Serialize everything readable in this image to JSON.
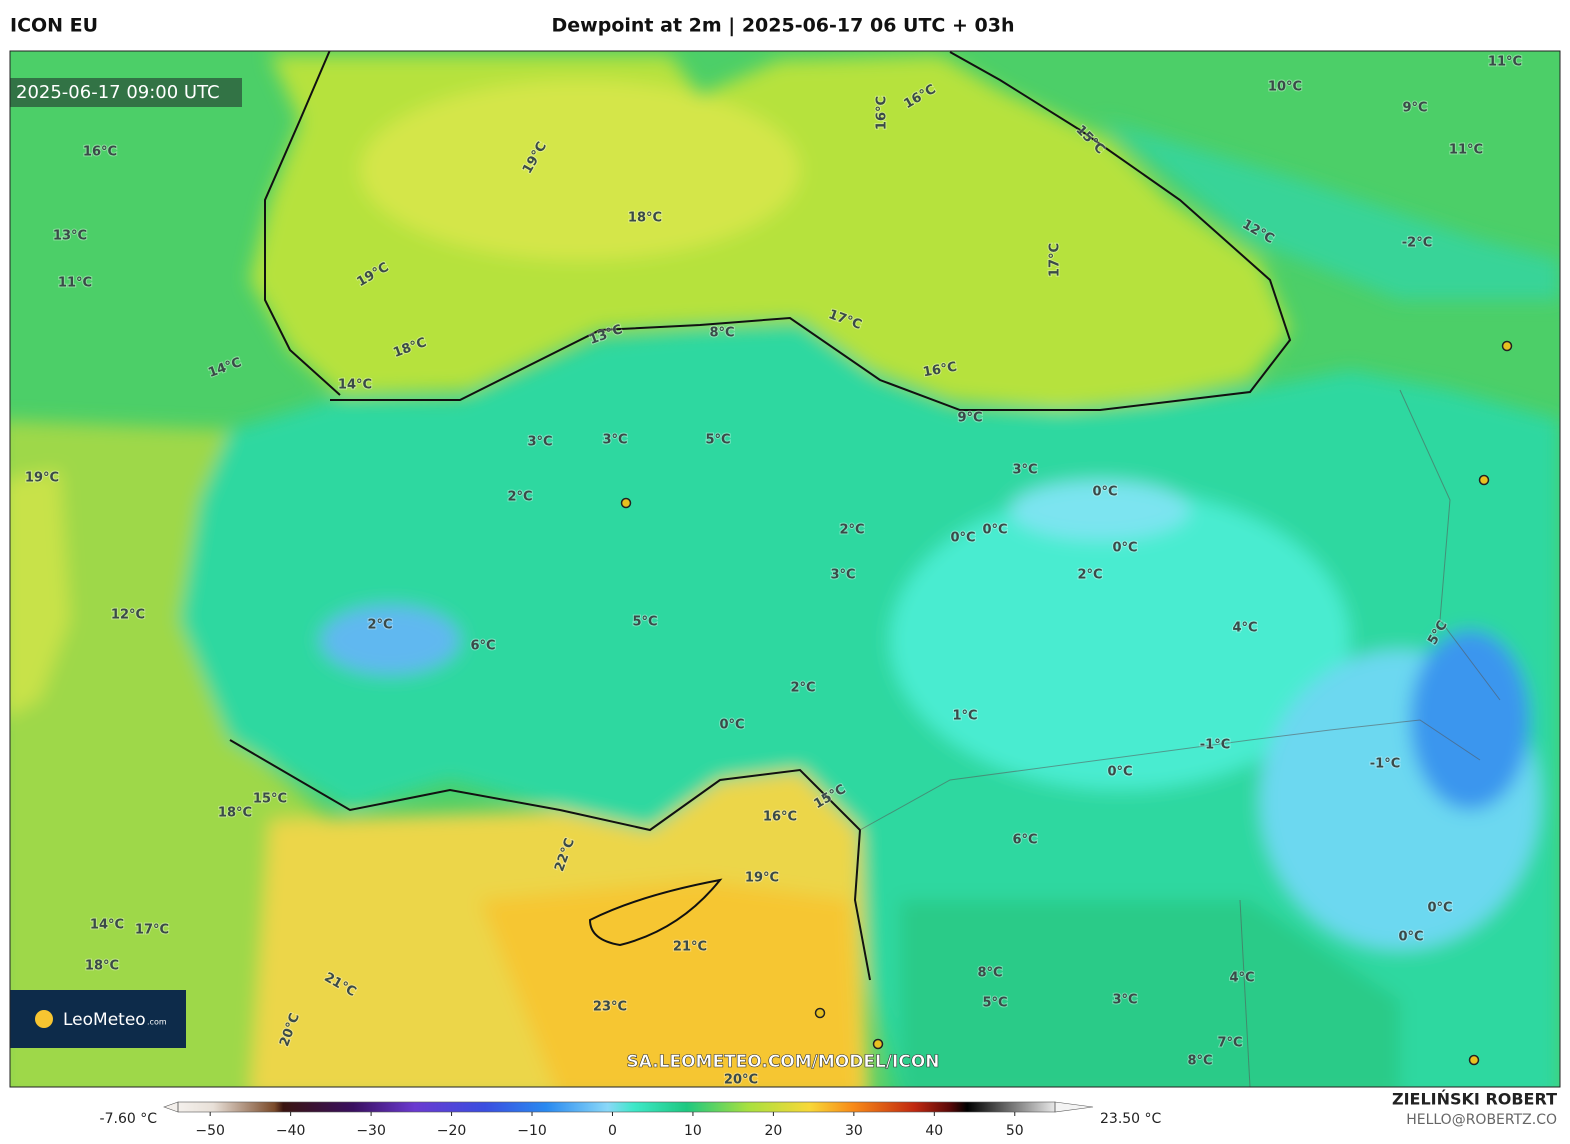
{
  "header": {
    "left": "ICON EU",
    "title": "Dewpoint at 2m | 2025-06-17 06 UTC + 03h"
  },
  "map": {
    "timestamp": "2025-06-17 09:00 UTC",
    "logo": "LeoMeteo",
    "logo_suffix": ".com",
    "url": "SA.LEOMETEO.COM/MODEL/ICON",
    "contour_labels": [
      "19°C",
      "18°C",
      "19°C",
      "18°C",
      "17°C",
      "16°C",
      "17°C",
      "16°C",
      "16°C",
      "15°C",
      "10°C",
      "9°C",
      "11°C",
      "12°C",
      "14°C",
      "14°C",
      "13°C",
      "8°C",
      "9°C",
      "3°C",
      "3°C",
      "5°C",
      "3°C",
      "0°C",
      "2°C",
      "2°C",
      "0°C",
      "0°C",
      "3°C",
      "5°C",
      "2°C",
      "0°C",
      "2°C",
      "4°C",
      "2°C",
      "1°C",
      "0°C",
      "-1°C",
      "0°C",
      "6°C",
      "16°C",
      "15°C",
      "19°C",
      "21°C",
      "22°C",
      "23°C",
      "21°C",
      "20°C",
      "20°C",
      "18°C",
      "17°C",
      "18°C",
      "14°C",
      "15°C",
      "8°C",
      "5°C",
      "3°C",
      "4°C",
      "7°C",
      "8°C",
      "0°C",
      "0°C",
      "-1°C",
      "6°C",
      "19°C",
      "12°C",
      "16°C",
      "13°C",
      "11°C",
      "11°C",
      "-2°C",
      "5°C"
    ]
  },
  "colorbar": {
    "min_label": "-7.60 °C",
    "max_label": "23.50 °C",
    "range": [
      -54,
      55
    ],
    "ticks": [
      {
        "value": -50,
        "label": "−50"
      },
      {
        "value": -40,
        "label": "−40"
      },
      {
        "value": -30,
        "label": "−30"
      },
      {
        "value": -20,
        "label": "−20"
      },
      {
        "value": -10,
        "label": "−10"
      },
      0,
      10,
      20,
      30,
      40,
      50
    ]
  },
  "credits": {
    "author": "ZIELIŃSKI ROBERT",
    "email": "HELLO@ROBERTZ.CO"
  }
}
